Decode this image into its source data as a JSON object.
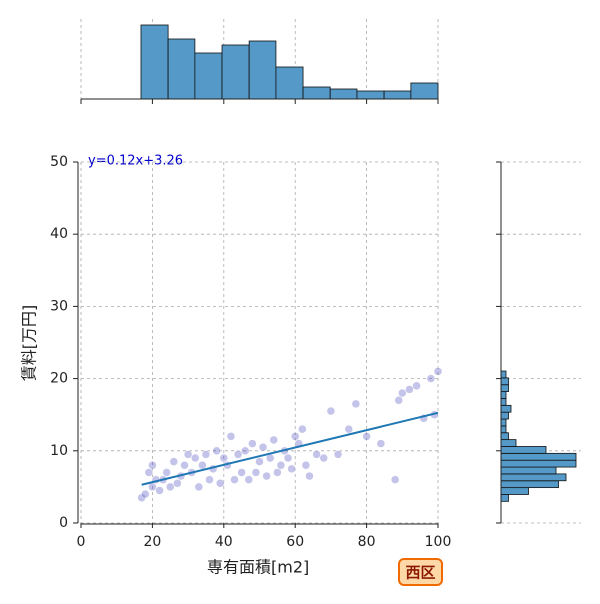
{
  "chart_data": [
    {
      "type": "scatter",
      "x_label": "専有面積[m2]",
      "y_label": "賃料[万円]",
      "annotation": "y=0.12x+3.26",
      "badge": "西区",
      "color": "#3a3ab8",
      "x": [
        17,
        18,
        19,
        20,
        20,
        21,
        22,
        23,
        24,
        25,
        26,
        27,
        28,
        29,
        30,
        31,
        32,
        33,
        34,
        35,
        36,
        37,
        38,
        39,
        40,
        41,
        42,
        43,
        44,
        45,
        46,
        47,
        48,
        49,
        50,
        51,
        52,
        53,
        54,
        55,
        56,
        57,
        58,
        59,
        60,
        61,
        62,
        63,
        64,
        66,
        68,
        70,
        72,
        75,
        77,
        80,
        84,
        88,
        89,
        90,
        92,
        94,
        96,
        98,
        100,
        99
      ],
      "y": [
        3.5,
        4,
        7,
        8,
        5,
        6,
        4.5,
        6,
        7,
        5,
        8.5,
        5.5,
        6.5,
        8,
        9.5,
        7,
        9,
        5,
        8,
        9.5,
        6,
        7.5,
        10,
        5.5,
        9,
        8,
        12,
        6,
        9.5,
        7,
        10,
        6,
        11,
        7,
        8.5,
        10.5,
        6.5,
        9,
        11.5,
        7,
        8,
        10,
        9,
        7.5,
        12,
        11,
        13,
        8,
        6.5,
        9.5,
        9,
        15.5,
        9.5,
        13,
        16.5,
        12,
        11,
        6,
        17,
        18,
        18.5,
        19,
        14.5,
        20,
        21,
        15
      ],
      "fit": {
        "x": [
          17,
          100
        ],
        "values": [
          5.3,
          15.26
        ],
        "color": "#1f77b4"
      },
      "xlim": [
        0,
        100
      ],
      "xticks": [
        0,
        20,
        40,
        60,
        80,
        100
      ],
      "ylim": [
        0,
        50
      ],
      "yticks": [
        0,
        10,
        20,
        30,
        40,
        50
      ],
      "grid": true
    },
    {
      "type": "histogram",
      "orientation": "vertical",
      "color": "#5499c7",
      "bins": [
        16.8,
        24.4,
        31.9,
        39.5,
        47.1,
        54.6,
        62.2,
        69.8,
        77.3,
        84.9,
        92.4,
        100
      ],
      "counts": [
        37,
        30,
        23,
        27,
        29,
        16,
        6,
        5,
        4,
        4,
        8
      ],
      "xlim": [
        0,
        100
      ],
      "xticks": [
        0,
        20,
        40,
        60,
        80,
        100
      ],
      "ylim": [
        0,
        40
      ],
      "grid": true
    },
    {
      "type": "histogram",
      "orientation": "horizontal",
      "color": "#5499c7",
      "bins": [
        3.0,
        3.95,
        4.9,
        5.85,
        6.8,
        7.75,
        8.7,
        9.65,
        10.6,
        11.55,
        12.5,
        13.45,
        14.4,
        15.35,
        16.3,
        17.25,
        18.2,
        19.15,
        20.1,
        21.05
      ],
      "counts": [
        3,
        11,
        23,
        26,
        22,
        30,
        30,
        18,
        6,
        3,
        2,
        2,
        3,
        4,
        2,
        2,
        3,
        3,
        2
      ],
      "xlim": [
        0,
        32
      ],
      "ylim": [
        0,
        50
      ],
      "yticks": [
        0,
        10,
        20,
        30,
        40,
        50
      ],
      "grid": true
    }
  ]
}
